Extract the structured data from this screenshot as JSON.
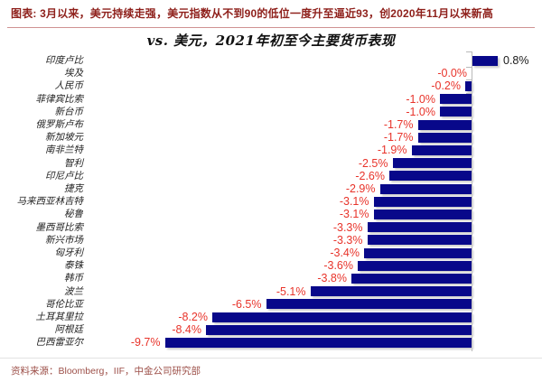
{
  "header": {
    "title": "图表: 3月以来，美元持续走强，美元指数从不到90的低位一度升至逼近93，创2020年11月以来新高"
  },
  "chart_data": {
    "type": "bar",
    "orientation": "horizontal",
    "title": "vs. 美元，2021年初至今主要货币表现",
    "categories": [
      "印度卢比",
      "埃及",
      "人民币",
      "菲律宾比索",
      "新台币",
      "俄罗斯卢布",
      "新加坡元",
      "南非兰特",
      "智利",
      "印尼卢比",
      "捷克",
      "马来西亚林吉特",
      "秘鲁",
      "墨西哥比索",
      "新兴市场",
      "匈牙利",
      "泰铢",
      "韩币",
      "波兰",
      "哥伦比亚",
      "土耳其里拉",
      "阿根廷",
      "巴西雷亚尔"
    ],
    "values": [
      0.8,
      -0.0,
      -0.2,
      -1.0,
      -1.0,
      -1.7,
      -1.7,
      -1.9,
      -2.5,
      -2.6,
      -2.9,
      -3.1,
      -3.1,
      -3.3,
      -3.3,
      -3.4,
      -3.6,
      -3.8,
      -5.1,
      -6.5,
      -8.2,
      -8.4,
      -9.7
    ],
    "value_labels": [
      "0.8%",
      "-0.0%",
      "-0.2%",
      "-1.0%",
      "-1.0%",
      "-1.7%",
      "-1.7%",
      "-1.9%",
      "-2.5%",
      "-2.6%",
      "-2.9%",
      "-3.1%",
      "-3.1%",
      "-3.3%",
      "-3.3%",
      "-3.4%",
      "-3.6%",
      "-3.8%",
      "-5.1%",
      "-6.5%",
      "-8.2%",
      "-8.4%",
      "-9.7%"
    ],
    "xlim": [
      -10.5,
      1.2
    ],
    "unit": "%",
    "grid": false,
    "legend": "none",
    "bar_color": "#08088a",
    "negative_label_color": "#e8332a",
    "positive_label_color": "#1a1a1a",
    "axis_color": "#b9b9b9"
  },
  "footer": {
    "source": "资料来源：Bloomberg，IIF，中金公司研究部"
  }
}
